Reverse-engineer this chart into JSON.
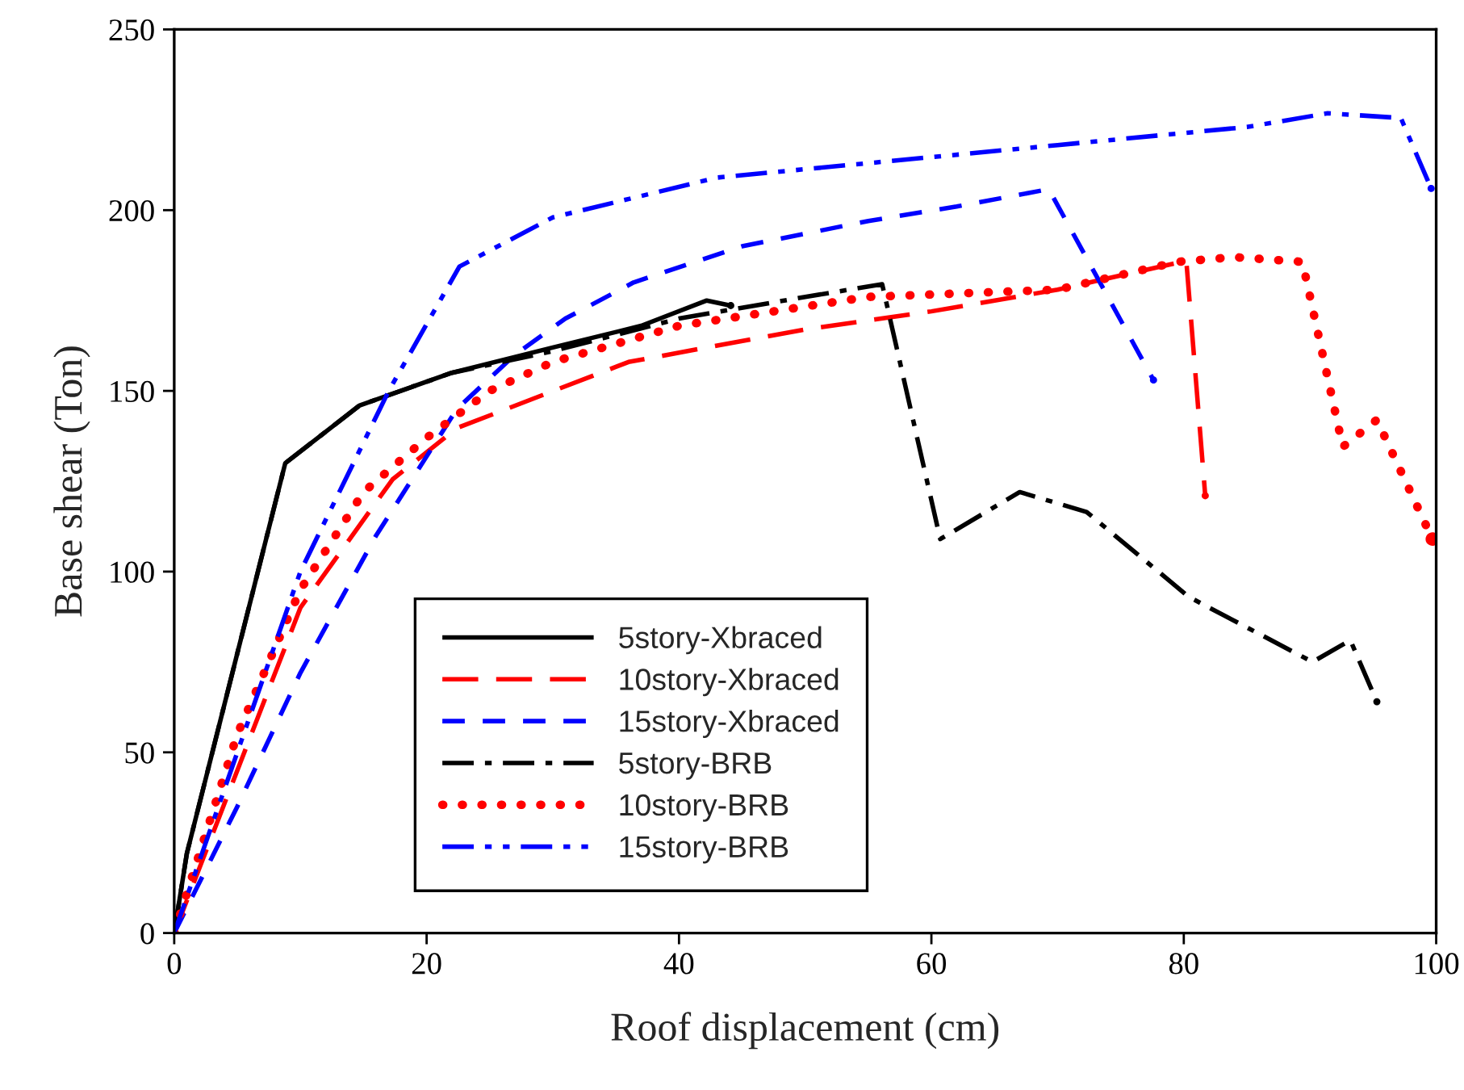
{
  "chart_data": {
    "type": "line",
    "xlabel": "Roof displacement (cm)",
    "ylabel": "Base shear (Ton)",
    "xlim": [
      0,
      100
    ],
    "ylim": [
      0,
      250
    ],
    "xticks": [
      0,
      20,
      40,
      60,
      80,
      100
    ],
    "yticks": [
      0,
      50,
      100,
      150,
      200,
      250
    ],
    "grid": false,
    "legend": "bottom",
    "marker": "none",
    "series": [
      {
        "name": "5story-Xbraced",
        "color": "#000000",
        "line_style": "solid",
        "x": [
          0,
          1,
          8.8,
          14.7,
          22,
          30,
          37,
          42.2,
          44.1
        ],
        "values": [
          0,
          22,
          130,
          146,
          155,
          162,
          168,
          175,
          173.6
        ]
      },
      {
        "name": "10story-Xbraced",
        "color": "#ff0000",
        "line_style": "longdash",
        "x": [
          0,
          5,
          10,
          17.3,
          22.4,
          36,
          50,
          60,
          70,
          80.2,
          81.7
        ],
        "values": [
          0,
          45,
          90,
          125.5,
          139.7,
          158,
          167,
          172,
          178,
          186,
          121
        ]
      },
      {
        "name": "15story-Xbraced",
        "color": "#0000ff",
        "line_style": "dashed",
        "x": [
          0,
          5,
          10,
          16,
          22.4,
          27,
          31,
          36.4,
          45,
          55,
          62,
          69.3,
          77.6
        ],
        "values": [
          0,
          35,
          72,
          110,
          145,
          160,
          170,
          180,
          190,
          197,
          201,
          205.8,
          153
        ]
      },
      {
        "name": "5story-BRB",
        "color": "#000000",
        "line_style": "dashdot",
        "x": [
          0,
          1,
          8.8,
          14.7,
          22,
          30,
          40,
          50,
          56.1,
          60.7,
          67,
          72.3,
          80.4,
          90.2,
          93.2,
          95.3
        ],
        "values": [
          0,
          22,
          130,
          146,
          155,
          161,
          170,
          176,
          179.5,
          109,
          122,
          116.5,
          93,
          75,
          81,
          64
        ]
      },
      {
        "name": "10story-BRB",
        "color": "#ff0000",
        "line_style": "dotted",
        "x": [
          0,
          5,
          10,
          15,
          20,
          25,
          30,
          40,
          55,
          70,
          79.5,
          84,
          89.4,
          92.6,
          95.3,
          99.7
        ],
        "values": [
          0,
          55,
          95,
          122,
          137,
          150,
          158,
          168,
          176,
          178,
          185.7,
          187,
          185.7,
          134.5,
          142,
          109
        ]
      },
      {
        "name": "15story-BRB",
        "color": "#0000ff",
        "line_style": "dashdotdot",
        "x": [
          0,
          5,
          10,
          17,
          22.6,
          30,
          43,
          55,
          70,
          85,
          91.4,
          97.2,
          99.6
        ],
        "values": [
          0,
          50,
          100,
          150,
          184.4,
          198,
          209,
          213,
          218,
          223,
          226.8,
          225.5,
          206
        ]
      }
    ]
  }
}
